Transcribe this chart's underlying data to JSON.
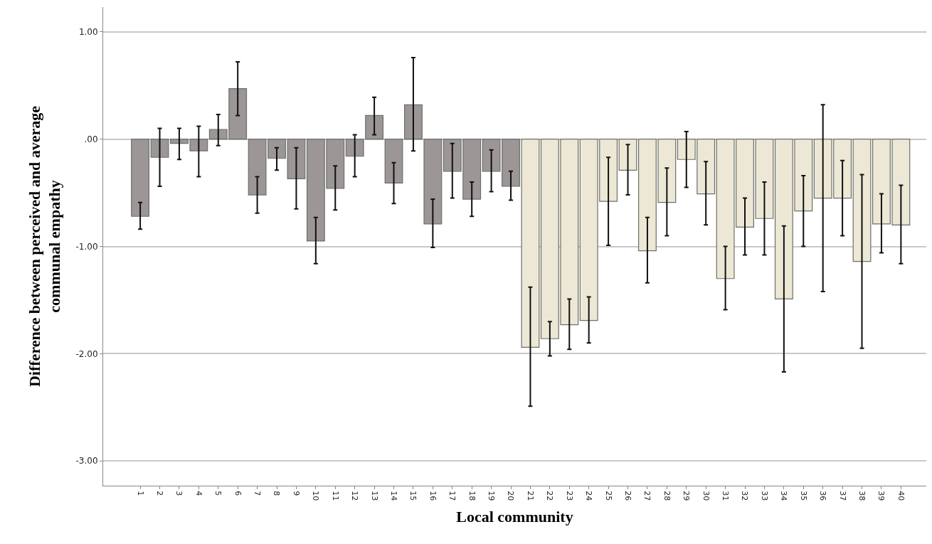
{
  "chart_data": {
    "type": "bar",
    "xlabel": "Local community",
    "ylabel": "Difference between perceived and average\ncommunal empathy",
    "categories": [
      "1",
      "2",
      "3",
      "4",
      "5",
      "6",
      "7",
      "8",
      "9",
      "10",
      "11",
      "12",
      "13",
      "14",
      "15",
      "16",
      "17",
      "18",
      "19",
      "20",
      "21",
      "22",
      "23",
      "24",
      "25",
      "26",
      "27",
      "28",
      "29",
      "30",
      "31",
      "32",
      "33",
      "34",
      "35",
      "36",
      "37",
      "38",
      "39",
      "40"
    ],
    "values": [
      -0.72,
      -0.17,
      -0.04,
      -0.11,
      0.09,
      0.47,
      -0.52,
      -0.18,
      -0.37,
      -0.95,
      -0.46,
      -0.16,
      0.22,
      -0.41,
      0.32,
      -0.79,
      -0.3,
      -0.56,
      -0.3,
      -0.44,
      -1.94,
      -1.86,
      -1.73,
      -1.69,
      -0.58,
      -0.29,
      -1.04,
      -0.59,
      -0.19,
      -0.51,
      -1.3,
      -0.82,
      -0.74,
      -1.49,
      -0.67,
      -0.55,
      -0.55,
      -1.14,
      -0.79,
      -0.8
    ],
    "errors": [
      [
        -0.84,
        -0.59
      ],
      [
        -0.44,
        0.1
      ],
      [
        -0.19,
        0.1
      ],
      [
        -0.35,
        0.12
      ],
      [
        -0.06,
        0.23
      ],
      [
        0.22,
        0.72
      ],
      [
        -0.69,
        -0.35
      ],
      [
        -0.29,
        -0.08
      ],
      [
        -0.65,
        -0.08
      ],
      [
        -1.16,
        -0.73
      ],
      [
        -0.66,
        -0.25
      ],
      [
        -0.35,
        0.04
      ],
      [
        0.04,
        0.39
      ],
      [
        -0.6,
        -0.22
      ],
      [
        -0.11,
        0.76
      ],
      [
        -1.01,
        -0.56
      ],
      [
        -0.55,
        -0.04
      ],
      [
        -0.72,
        -0.4
      ],
      [
        -0.49,
        -0.1
      ],
      [
        -0.57,
        -0.3
      ],
      [
        -2.49,
        -1.38
      ],
      [
        -2.02,
        -1.7
      ],
      [
        -1.96,
        -1.49
      ],
      [
        -1.9,
        -1.47
      ],
      [
        -0.99,
        -0.17
      ],
      [
        -0.52,
        -0.05
      ],
      [
        -1.34,
        -0.73
      ],
      [
        -0.9,
        -0.27
      ],
      [
        -0.45,
        0.07
      ],
      [
        -0.8,
        -0.21
      ],
      [
        -1.59,
        -1.0
      ],
      [
        -1.08,
        -0.55
      ],
      [
        -1.08,
        -0.4
      ],
      [
        -2.17,
        -0.81
      ],
      [
        -1.0,
        -0.34
      ],
      [
        -1.42,
        0.32
      ],
      [
        -0.9,
        -0.2
      ],
      [
        -1.95,
        -0.33
      ],
      [
        -1.06,
        -0.51
      ],
      [
        -1.16,
        -0.43
      ]
    ],
    "colors": [
      "#9c9696",
      "#9c9696",
      "#9c9696",
      "#9c9696",
      "#9c9696",
      "#9c9696",
      "#9c9696",
      "#9c9696",
      "#9c9696",
      "#9c9696",
      "#9c9696",
      "#9c9696",
      "#9c9696",
      "#9c9696",
      "#9c9696",
      "#9c9696",
      "#9c9696",
      "#9c9696",
      "#9c9696",
      "#9c9696",
      "#ede8d5",
      "#ede8d5",
      "#ede8d5",
      "#ede8d5",
      "#ede8d5",
      "#ede8d5",
      "#ede8d5",
      "#ede8d5",
      "#ede8d5",
      "#ede8d5",
      "#ede8d5",
      "#ede8d5",
      "#ede8d5",
      "#ede8d5",
      "#ede8d5",
      "#ede8d5",
      "#ede8d5",
      "#ede8d5",
      "#ede8d5",
      "#ede8d5"
    ],
    "ylim": [
      -3.23,
      1.23
    ],
    "yticks": [
      {
        "value": 1,
        "label": "1.00"
      },
      {
        "value": 0,
        "label": ".00"
      },
      {
        "value": -1,
        "label": "-1.00"
      },
      {
        "value": -2,
        "label": "-2.00"
      },
      {
        "value": -3,
        "label": "-3.00"
      }
    ],
    "grid": "y"
  }
}
